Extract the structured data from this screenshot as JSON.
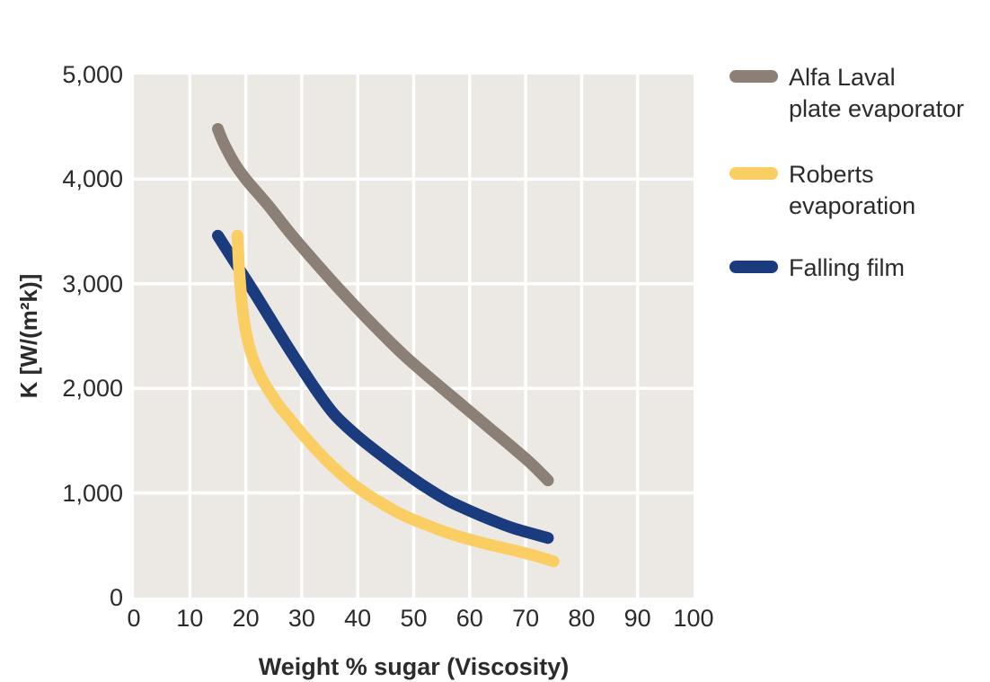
{
  "chart_data": {
    "type": "line",
    "title": "",
    "xlabel": "Weight % sugar (Viscosity)",
    "ylabel": "K [W/(m²k)]",
    "xlim": [
      0,
      100
    ],
    "ylim": [
      0,
      5000
    ],
    "x_ticks": [
      0,
      10,
      20,
      30,
      40,
      50,
      60,
      70,
      80,
      90,
      100
    ],
    "x_tick_labels": [
      "0",
      "10",
      "20",
      "30",
      "40",
      "50",
      "60",
      "70",
      "80",
      "90",
      "100"
    ],
    "y_ticks": [
      0,
      1000,
      2000,
      3000,
      4000,
      5000
    ],
    "y_tick_labels": [
      "0",
      "1,000",
      "2,000",
      "3,000",
      "4,000",
      "5,000"
    ],
    "grid": true,
    "grid_color": "#FFFFFF",
    "plot_background": "#ECE8E3",
    "legend_position": "right",
    "line_width": 13,
    "series": [
      {
        "name": "Alfa Laval plate evaporator",
        "legend_lines": [
          "Alfa Laval",
          "plate evaporator"
        ],
        "color": "#8C8076",
        "points": [
          [
            15,
            4480
          ],
          [
            16,
            4350
          ],
          [
            18,
            4150
          ],
          [
            20,
            4000
          ],
          [
            24,
            3750
          ],
          [
            28,
            3480
          ],
          [
            32,
            3230
          ],
          [
            36,
            2990
          ],
          [
            40,
            2760
          ],
          [
            44,
            2540
          ],
          [
            48,
            2330
          ],
          [
            52,
            2140
          ],
          [
            56,
            1960
          ],
          [
            60,
            1780
          ],
          [
            64,
            1600
          ],
          [
            68,
            1420
          ],
          [
            71,
            1280
          ],
          [
            74,
            1120
          ]
        ]
      },
      {
        "name": "Roberts evaporation",
        "legend_lines": [
          "Roberts",
          "evaporation"
        ],
        "color": "#FBCE63",
        "points": [
          [
            18.5,
            3460
          ],
          [
            18.8,
            3150
          ],
          [
            19.3,
            2820
          ],
          [
            20,
            2550
          ],
          [
            21,
            2330
          ],
          [
            22.5,
            2130
          ],
          [
            24,
            1990
          ],
          [
            26,
            1830
          ],
          [
            28,
            1700
          ],
          [
            30,
            1570
          ],
          [
            33,
            1390
          ],
          [
            36,
            1230
          ],
          [
            40,
            1050
          ],
          [
            44,
            910
          ],
          [
            48,
            790
          ],
          [
            52,
            700
          ],
          [
            56,
            620
          ],
          [
            60,
            555
          ],
          [
            64,
            500
          ],
          [
            68,
            450
          ],
          [
            72,
            395
          ],
          [
            75,
            345
          ]
        ]
      },
      {
        "name": "Falling film",
        "legend_lines": [
          "Falling film"
        ],
        "color": "#1A3B7D",
        "points": [
          [
            15,
            3460
          ],
          [
            18,
            3210
          ],
          [
            21,
            2960
          ],
          [
            24,
            2700
          ],
          [
            27,
            2440
          ],
          [
            30,
            2190
          ],
          [
            33,
            1950
          ],
          [
            36,
            1740
          ],
          [
            40,
            1540
          ],
          [
            44,
            1370
          ],
          [
            48,
            1210
          ],
          [
            52,
            1060
          ],
          [
            56,
            930
          ],
          [
            60,
            830
          ],
          [
            64,
            740
          ],
          [
            68,
            660
          ],
          [
            74,
            570
          ]
        ]
      }
    ]
  },
  "colors": {
    "page_background": "#FFFFFF",
    "text": "#2B2B2B"
  },
  "layout_values": {
    "legend_item_tops": [
      69,
      177,
      281
    ]
  }
}
